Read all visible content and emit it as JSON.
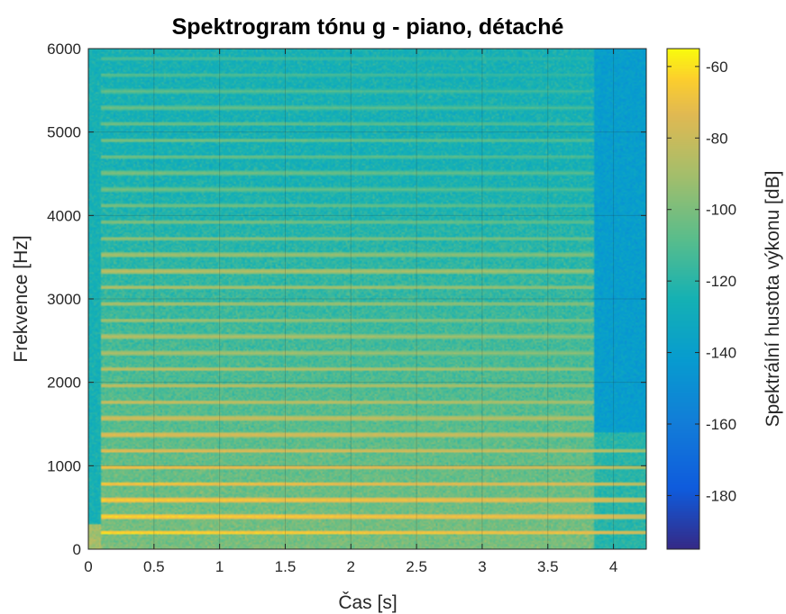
{
  "chart_data": {
    "type": "heatmap",
    "title": "Spektrogram tónu g - piano, détaché",
    "xlabel": "Čas [s]",
    "ylabel": "Frekvence [Hz]",
    "xlim": [
      0,
      4.25
    ],
    "ylim": [
      0,
      6000
    ],
    "xticks": [
      0,
      0.5,
      1,
      1.5,
      2,
      2.5,
      3,
      3.5,
      4
    ],
    "xtick_labels": [
      "0",
      "0.5",
      "1",
      "1.5",
      "2",
      "2.5",
      "3",
      "3.5",
      "4"
    ],
    "yticks": [
      0,
      1000,
      2000,
      3000,
      4000,
      5000,
      6000
    ],
    "ytick_labels": [
      "0",
      "1000",
      "2000",
      "3000",
      "4000",
      "5000",
      "6000"
    ],
    "grid": true,
    "colormap": "parula",
    "colorbar": {
      "label": "Spektrální hustota výkonu [dB]",
      "range": [
        -195,
        -55
      ],
      "ticks": [
        -60,
        -80,
        -100,
        -120,
        -140,
        -160,
        -180
      ],
      "tick_labels": [
        "-60",
        "-80",
        "-100",
        "-120",
        "-140",
        "-160",
        "-180"
      ]
    },
    "onset_s": 0.1,
    "offset_s": 3.85,
    "harmonics_hz": [
      196,
      392,
      588,
      784,
      980,
      1176,
      1372,
      1568,
      1764,
      1960,
      2156,
      2352,
      2548,
      2744,
      2940,
      3136,
      3332,
      3528,
      3724,
      3920,
      4116,
      4312,
      4508,
      4704,
      4900,
      5096,
      5292,
      5488,
      5684,
      5880
    ],
    "harmonic_peak_db": [
      -58,
      -60,
      -62,
      -64,
      -66,
      -70,
      -72,
      -76,
      -78,
      -80,
      -80,
      -86,
      -84,
      -88,
      -86,
      -84,
      -82,
      -88,
      -92,
      -96,
      -98,
      -100,
      -98,
      -100,
      -98,
      -100,
      -102,
      -104,
      -106,
      -108
    ],
    "noise_floor_db": {
      "low_freq": -100,
      "high_freq": -125,
      "before_onset": -125,
      "after_offset": -140
    }
  }
}
